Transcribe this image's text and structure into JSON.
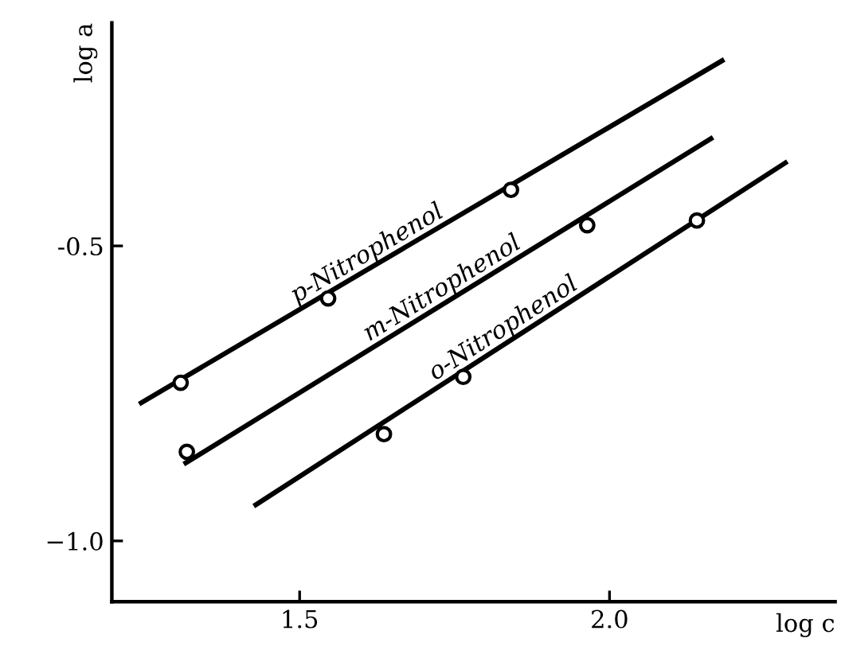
{
  "chart_data": {
    "type": "scatter",
    "xlabel": "log c",
    "ylabel": "log a",
    "xlim": [
      1.197,
      2.364
    ],
    "ylim": [
      -1.103,
      -0.122
    ],
    "xticks": [
      1.5,
      {
        "value": 2.0,
        "label": "2.0"
      }
    ],
    "yticks": [
      -0.5,
      {
        "value": -1.0,
        "label": "−1.0"
      }
    ],
    "grid": false,
    "line_style": "solid",
    "series": [
      {
        "type": "line",
        "marker": "none",
        "name": "p-Nitrophenol",
        "color": "#000000",
        "x": [
          1.241,
          2.185
        ],
        "values": [
          -0.768,
          -0.184
        ]
      },
      {
        "type": "line",
        "marker": "none",
        "name": "m-Nitrophenol",
        "color": "#000000",
        "x": [
          1.313,
          2.167
        ],
        "values": [
          -0.87,
          -0.316
        ]
      },
      {
        "type": "line",
        "marker": "none",
        "name": "o-Nitrophenol",
        "color": "#000000",
        "x": [
          1.426,
          2.287
        ],
        "values": [
          -0.941,
          -0.357
        ]
      },
      {
        "type": "scatter",
        "marker": "circle",
        "color": "#000000",
        "x": [
          1.308,
          1.546,
          1.841
        ],
        "values": [
          -0.732,
          -0.589,
          -0.405
        ]
      },
      {
        "type": "scatter",
        "marker": "circle",
        "color": "#000000",
        "x": [
          1.318,
          1.964
        ],
        "values": [
          -0.849,
          -0.465
        ]
      },
      {
        "type": "scatter",
        "marker": "circle",
        "color": "#000000",
        "x": [
          1.636,
          1.764,
          2.141
        ],
        "values": [
          -0.819,
          -0.722,
          -0.457
        ]
      }
    ]
  }
}
